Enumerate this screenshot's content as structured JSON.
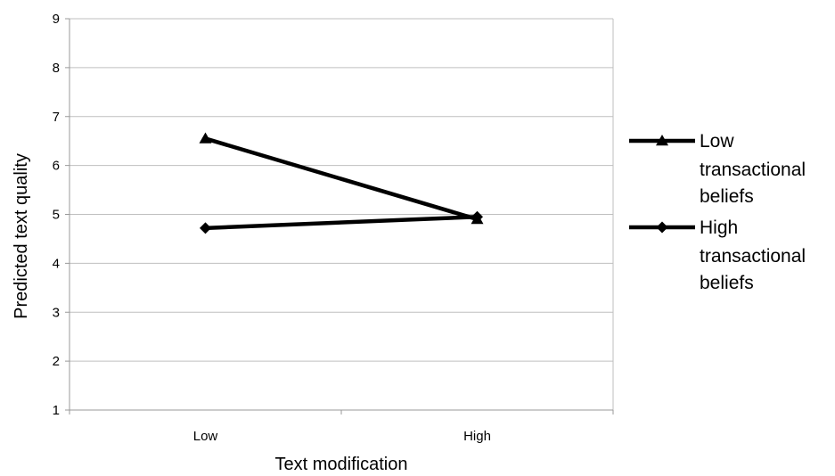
{
  "chart_data": {
    "type": "line",
    "categories": [
      "Low",
      "High"
    ],
    "xlabel": "Text modification",
    "ylabel": "Predicted text quality",
    "ylim": [
      1,
      9
    ],
    "yticks": [
      1,
      2,
      3,
      4,
      5,
      6,
      7,
      8,
      9
    ],
    "grid": true,
    "legend_position": "right",
    "series": [
      {
        "name_lines": [
          "Low",
          "transactional",
          "beliefs"
        ],
        "marker": "triangle",
        "color": "#000000",
        "values": [
          6.55,
          4.9
        ]
      },
      {
        "name_lines": [
          "High",
          "transactional",
          "beliefs"
        ],
        "marker": "diamond",
        "color": "#000000",
        "values": [
          4.72,
          4.95
        ]
      }
    ]
  }
}
